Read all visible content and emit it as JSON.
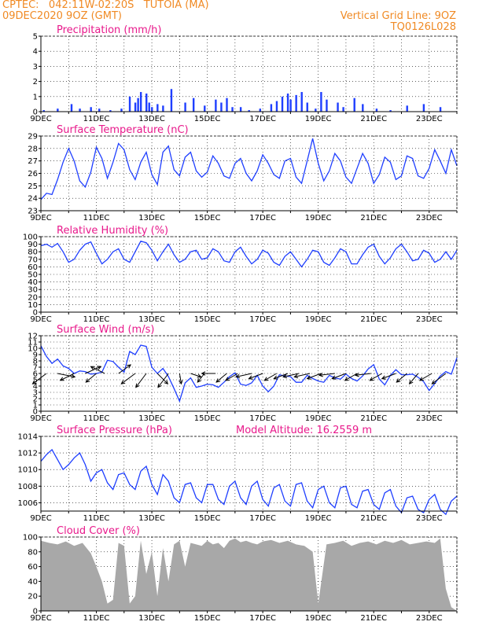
{
  "header": {
    "line1": "CPTEC:   042:11W-02:20S   TUTOIA (MA)",
    "line2": "09DEC2020 9OZ (GMT)",
    "right1": "Vertical Grid Line: 9OZ",
    "right2": "TQ0126L028"
  },
  "colors": {
    "header": "#f08a24",
    "title": "#e8198b",
    "series": "#1f3fff",
    "cloud": "#a8a8a8"
  },
  "x_labels": [
    "9DEC",
    "11DEC",
    "13DEC",
    "15DEC",
    "17DEC",
    "19DEC",
    "21DEC",
    "23DEC"
  ],
  "chart_data": [
    {
      "type": "bar",
      "title": "Precipitation (mm/h)",
      "ylim": [
        0,
        5
      ],
      "yticks": [
        0,
        1,
        2,
        3,
        4,
        5
      ],
      "x_start_day": 9,
      "x_end_day": 24,
      "x": [
        9.1,
        9.6,
        10.1,
        10.4,
        10.8,
        11.1,
        11.5,
        11.9,
        12.2,
        12.4,
        12.5,
        12.6,
        12.8,
        12.9,
        13.0,
        13.2,
        13.4,
        13.7,
        14.2,
        14.5,
        14.9,
        15.3,
        15.5,
        15.7,
        15.9,
        16.2,
        16.5,
        16.9,
        17.3,
        17.5,
        17.7,
        17.9,
        18.0,
        18.2,
        18.4,
        18.6,
        18.9,
        19.1,
        19.3,
        19.7,
        19.9,
        20.3,
        20.6,
        21.1,
        21.6,
        22.2,
        22.8,
        23.4
      ],
      "values": [
        0.1,
        0.2,
        0.5,
        0.2,
        0.3,
        0.2,
        0.1,
        0.2,
        1.0,
        0.6,
        0.9,
        1.3,
        1.2,
        0.6,
        0.3,
        0.5,
        0.4,
        1.5,
        0.6,
        0.9,
        0.4,
        0.8,
        0.6,
        0.9,
        0.3,
        0.3,
        0.1,
        0.2,
        0.5,
        0.7,
        1.0,
        1.2,
        0.8,
        1.1,
        1.3,
        0.6,
        0.2,
        1.3,
        0.8,
        0.6,
        0.3,
        0.9,
        0.5,
        0.2,
        0.1,
        0.4,
        0.5,
        0.3
      ]
    },
    {
      "type": "line",
      "title": "Surface Temperature (nC)",
      "ylim": [
        23,
        29
      ],
      "yticks": [
        23,
        24,
        25,
        26,
        27,
        28,
        29
      ],
      "x_start_day": 9,
      "x_end_day": 24,
      "x": [
        9.0,
        9.2,
        9.4,
        9.6,
        9.8,
        10.0,
        10.2,
        10.4,
        10.6,
        10.8,
        11.0,
        11.2,
        11.4,
        11.6,
        11.8,
        12.0,
        12.2,
        12.4,
        12.6,
        12.8,
        13.0,
        13.2,
        13.4,
        13.6,
        13.8,
        14.0,
        14.2,
        14.4,
        14.6,
        14.8,
        15.0,
        15.2,
        15.4,
        15.6,
        15.8,
        16.0,
        16.2,
        16.4,
        16.6,
        16.8,
        17.0,
        17.2,
        17.4,
        17.6,
        17.8,
        18.0,
        18.2,
        18.4,
        18.6,
        18.8,
        19.0,
        19.2,
        19.4,
        19.6,
        19.8,
        20.0,
        20.2,
        20.4,
        20.6,
        20.8,
        21.0,
        21.2,
        21.4,
        21.6,
        21.8,
        22.0,
        22.2,
        22.4,
        22.6,
        22.8,
        23.0,
        23.2,
        23.4,
        23.6,
        23.8,
        24.0
      ],
      "values": [
        23.9,
        24.4,
        24.3,
        25.5,
        26.9,
        28.0,
        27.0,
        25.4,
        24.9,
        26.1,
        28.1,
        27.2,
        25.6,
        26.9,
        28.4,
        27.9,
        26.3,
        25.5,
        26.9,
        27.7,
        25.9,
        25.1,
        27.7,
        28.2,
        26.3,
        25.8,
        27.3,
        27.7,
        26.2,
        25.7,
        26.1,
        27.4,
        26.8,
        25.8,
        25.6,
        26.8,
        27.2,
        26.0,
        25.4,
        26.2,
        27.5,
        26.8,
        25.9,
        25.6,
        27.0,
        27.2,
        25.7,
        25.2,
        27.0,
        28.8,
        26.8,
        25.4,
        26.2,
        27.6,
        27.0,
        25.7,
        25.2,
        26.4,
        27.6,
        26.8,
        25.2,
        25.9,
        27.3,
        26.9,
        25.5,
        25.8,
        27.4,
        27.2,
        25.8,
        25.6,
        26.4,
        27.9,
        27.0,
        26.0,
        27.9,
        26.6
      ]
    },
    {
      "type": "line",
      "title": "Relative Humidity (%)",
      "ylim": [
        0,
        100
      ],
      "yticks": [
        0,
        10,
        20,
        30,
        40,
        50,
        60,
        70,
        80,
        90,
        100
      ],
      "x_start_day": 9,
      "x_end_day": 24,
      "x": [
        9.0,
        9.2,
        9.4,
        9.6,
        9.8,
        10.0,
        10.2,
        10.4,
        10.6,
        10.8,
        11.0,
        11.2,
        11.4,
        11.6,
        11.8,
        12.0,
        12.2,
        12.4,
        12.6,
        12.8,
        13.0,
        13.2,
        13.4,
        13.6,
        13.8,
        14.0,
        14.2,
        14.4,
        14.6,
        14.8,
        15.0,
        15.2,
        15.4,
        15.6,
        15.8,
        16.0,
        16.2,
        16.4,
        16.6,
        16.8,
        17.0,
        17.2,
        17.4,
        17.6,
        17.8,
        18.0,
        18.2,
        18.4,
        18.6,
        18.8,
        19.0,
        19.2,
        19.4,
        19.6,
        19.8,
        20.0,
        20.2,
        20.4,
        20.6,
        20.8,
        21.0,
        21.2,
        21.4,
        21.6,
        21.8,
        22.0,
        22.2,
        22.4,
        22.6,
        22.8,
        23.0,
        23.2,
        23.4,
        23.6,
        23.8,
        24.0
      ],
      "values": [
        88,
        90,
        86,
        91,
        80,
        66,
        70,
        82,
        90,
        93,
        78,
        64,
        70,
        80,
        84,
        70,
        66,
        80,
        94,
        92,
        82,
        68,
        80,
        90,
        76,
        66,
        70,
        80,
        82,
        70,
        72,
        84,
        80,
        68,
        66,
        80,
        86,
        74,
        64,
        70,
        82,
        78,
        66,
        62,
        74,
        80,
        70,
        60,
        70,
        82,
        80,
        66,
        62,
        72,
        84,
        80,
        64,
        64,
        76,
        86,
        90,
        74,
        64,
        72,
        84,
        90,
        80,
        68,
        70,
        82,
        78,
        66,
        70,
        80,
        70,
        82
      ]
    },
    {
      "type": "line",
      "title": "Surface Wind (m/s)",
      "ylim": [
        0,
        12
      ],
      "yticks": [
        0,
        1,
        2,
        3,
        4,
        5,
        6,
        7,
        8,
        9,
        10,
        11,
        12
      ],
      "x_start_day": 9,
      "x_end_day": 24,
      "x": [
        9.0,
        9.2,
        9.4,
        9.6,
        9.8,
        10.0,
        10.2,
        10.4,
        10.6,
        10.8,
        11.0,
        11.2,
        11.4,
        11.6,
        11.8,
        12.0,
        12.2,
        12.4,
        12.6,
        12.8,
        13.0,
        13.2,
        13.4,
        13.6,
        13.8,
        14.0,
        14.2,
        14.4,
        14.6,
        14.8,
        15.0,
        15.2,
        15.4,
        15.6,
        15.8,
        16.0,
        16.2,
        16.4,
        16.6,
        16.8,
        17.0,
        17.2,
        17.4,
        17.6,
        17.8,
        18.0,
        18.2,
        18.4,
        18.6,
        18.8,
        19.0,
        19.2,
        19.4,
        19.6,
        19.8,
        20.0,
        20.2,
        20.4,
        20.6,
        20.8,
        21.0,
        21.2,
        21.4,
        21.6,
        21.8,
        22.0,
        22.2,
        22.4,
        22.6,
        22.8,
        23.0,
        23.2,
        23.4,
        23.6,
        23.8,
        24.0
      ],
      "values": [
        10.4,
        8.7,
        7.6,
        8.3,
        7.2,
        6.8,
        6.0,
        6.4,
        6.3,
        5.9,
        6.0,
        6.2,
        8.1,
        7.9,
        7.0,
        6.2,
        9.5,
        9.0,
        10.5,
        10.3,
        7.0,
        6.0,
        6.8,
        5.5,
        3.6,
        1.6,
        4.5,
        5.3,
        3.8,
        4.0,
        4.3,
        4.2,
        3.8,
        4.6,
        5.5,
        6.1,
        4.3,
        4.1,
        4.5,
        5.7,
        4.0,
        3.1,
        4.0,
        5.8,
        5.6,
        5.5,
        4.6,
        4.6,
        5.7,
        5.2,
        4.8,
        4.6,
        5.7,
        5.3,
        5.1,
        5.9,
        5.2,
        4.8,
        5.6,
        6.7,
        7.4,
        5.1,
        4.2,
        5.7,
        6.6,
        5.8,
        5.8,
        5.9,
        5.4,
        4.7,
        3.3,
        4.4,
        5.6,
        6.3,
        5.9,
        8.5
      ]
    },
    {
      "type": "line",
      "title": "Surface Pressure (hPa)",
      "annotation": "Model Altitude: 16.2559 m",
      "ylim": [
        1005,
        1014
      ],
      "yticks": [
        1006,
        1008,
        1010,
        1012,
        1014
      ],
      "x_start_day": 9,
      "x_end_day": 24,
      "x": [
        9.0,
        9.2,
        9.4,
        9.6,
        9.8,
        10.0,
        10.2,
        10.4,
        10.6,
        10.8,
        11.0,
        11.2,
        11.4,
        11.6,
        11.8,
        12.0,
        12.2,
        12.4,
        12.6,
        12.8,
        13.0,
        13.2,
        13.4,
        13.6,
        13.8,
        14.0,
        14.2,
        14.4,
        14.6,
        14.8,
        15.0,
        15.2,
        15.4,
        15.6,
        15.8,
        16.0,
        16.2,
        16.4,
        16.6,
        16.8,
        17.0,
        17.2,
        17.4,
        17.6,
        17.8,
        18.0,
        18.2,
        18.4,
        18.6,
        18.8,
        19.0,
        19.2,
        19.4,
        19.6,
        19.8,
        20.0,
        20.2,
        20.4,
        20.6,
        20.8,
        21.0,
        21.2,
        21.4,
        21.6,
        21.8,
        22.0,
        22.2,
        22.4,
        22.6,
        22.8,
        23.0,
        23.2,
        23.4,
        23.6,
        23.8,
        24.0
      ],
      "values": [
        1011.0,
        1011.8,
        1012.4,
        1011.2,
        1010.0,
        1010.6,
        1011.4,
        1012.0,
        1010.6,
        1008.6,
        1009.6,
        1010.0,
        1008.4,
        1007.6,
        1009.4,
        1009.6,
        1008.2,
        1007.6,
        1009.8,
        1010.4,
        1008.2,
        1007.0,
        1009.4,
        1008.6,
        1006.6,
        1006.0,
        1008.2,
        1008.4,
        1006.6,
        1006.0,
        1008.2,
        1008.2,
        1006.4,
        1005.8,
        1008.0,
        1008.6,
        1006.6,
        1005.8,
        1008.0,
        1008.6,
        1006.4,
        1005.6,
        1007.8,
        1008.2,
        1006.2,
        1005.6,
        1008.2,
        1008.4,
        1006.2,
        1005.4,
        1007.6,
        1008.0,
        1006.0,
        1005.4,
        1007.8,
        1008.0,
        1005.8,
        1005.4,
        1007.4,
        1007.6,
        1005.8,
        1005.2,
        1007.2,
        1007.6,
        1005.6,
        1004.8,
        1006.6,
        1006.8,
        1005.2,
        1004.8,
        1006.4,
        1007.0,
        1005.2,
        1004.6,
        1006.2,
        1006.8
      ]
    },
    {
      "type": "area",
      "title": "Cloud Cover (%)",
      "ylim": [
        0,
        100
      ],
      "yticks": [
        0,
        20,
        40,
        60,
        80,
        100
      ],
      "x_start_day": 9,
      "x_end_day": 24,
      "x": [
        9.0,
        9.3,
        9.6,
        9.9,
        10.2,
        10.5,
        10.8,
        11.0,
        11.2,
        11.4,
        11.6,
        11.8,
        12.0,
        12.2,
        12.4,
        12.6,
        12.8,
        13.0,
        13.2,
        13.4,
        13.6,
        13.8,
        14.0,
        14.2,
        14.4,
        14.6,
        14.8,
        15.0,
        15.2,
        15.4,
        15.6,
        15.8,
        16.0,
        16.2,
        16.4,
        16.6,
        16.8,
        17.0,
        17.3,
        17.6,
        17.9,
        18.2,
        18.5,
        18.8,
        19.0,
        19.3,
        19.6,
        19.9,
        20.2,
        20.5,
        20.8,
        21.1,
        21.4,
        21.7,
        22.0,
        22.3,
        22.6,
        22.9,
        23.2,
        23.4,
        23.6,
        23.8,
        24.0
      ],
      "values": [
        95,
        92,
        90,
        94,
        88,
        92,
        78,
        60,
        40,
        10,
        15,
        92,
        88,
        10,
        20,
        95,
        50,
        80,
        20,
        85,
        40,
        90,
        95,
        60,
        92,
        90,
        88,
        95,
        90,
        92,
        85,
        95,
        98,
        93,
        95,
        92,
        90,
        94,
        96,
        92,
        95,
        90,
        88,
        80,
        10,
        90,
        92,
        95,
        88,
        92,
        94,
        90,
        95,
        92,
        96,
        90,
        92,
        94,
        92,
        98,
        30,
        5,
        0
      ]
    }
  ],
  "wind_vectors": [
    {
      "x": 9.2,
      "u": -8,
      "v": -6
    },
    {
      "x": 9.6,
      "u": 10,
      "v": -2
    },
    {
      "x": 10.2,
      "u": -8,
      "v": -4
    },
    {
      "x": 10.6,
      "u": 9,
      "v": 4
    },
    {
      "x": 11.0,
      "u": -6,
      "v": -5
    },
    {
      "x": 11.3,
      "u": -8,
      "v": 4
    },
    {
      "x": 11.8,
      "u": 7,
      "v": 5
    },
    {
      "x": 12.4,
      "u": -8,
      "v": -6
    },
    {
      "x": 12.8,
      "u": -6,
      "v": -8
    },
    {
      "x": 13.2,
      "u": 6,
      "v": -6
    },
    {
      "x": 13.6,
      "u": -6,
      "v": -8
    },
    {
      "x": 14.0,
      "u": 1,
      "v": -6
    },
    {
      "x": 14.4,
      "u": 6,
      "v": -2
    },
    {
      "x": 14.9,
      "u": -4,
      "v": -5
    },
    {
      "x": 15.3,
      "u": -8,
      "v": 0
    },
    {
      "x": 15.7,
      "u": -6,
      "v": -5
    },
    {
      "x": 16.1,
      "u": -7,
      "v": -4
    },
    {
      "x": 16.6,
      "u": -9,
      "v": -2
    },
    {
      "x": 17.0,
      "u": -8,
      "v": -3
    },
    {
      "x": 17.5,
      "u": -7,
      "v": -4
    },
    {
      "x": 17.9,
      "u": -8,
      "v": -3
    },
    {
      "x": 18.3,
      "u": -9,
      "v": -2
    },
    {
      "x": 18.7,
      "u": -9,
      "v": -2
    },
    {
      "x": 19.1,
      "u": -8,
      "v": -3
    },
    {
      "x": 19.6,
      "u": -9,
      "v": -1
    },
    {
      "x": 20.0,
      "u": -8,
      "v": -3
    },
    {
      "x": 20.4,
      "u": -7,
      "v": -4
    },
    {
      "x": 20.9,
      "u": -9,
      "v": -1
    },
    {
      "x": 21.3,
      "u": -7,
      "v": -4
    },
    {
      "x": 21.8,
      "u": -8,
      "v": -3
    },
    {
      "x": 22.2,
      "u": -6,
      "v": -5
    },
    {
      "x": 22.6,
      "u": -5,
      "v": -6
    },
    {
      "x": 23.1,
      "u": -7,
      "v": -4
    },
    {
      "x": 23.6,
      "u": -8,
      "v": -6
    }
  ]
}
